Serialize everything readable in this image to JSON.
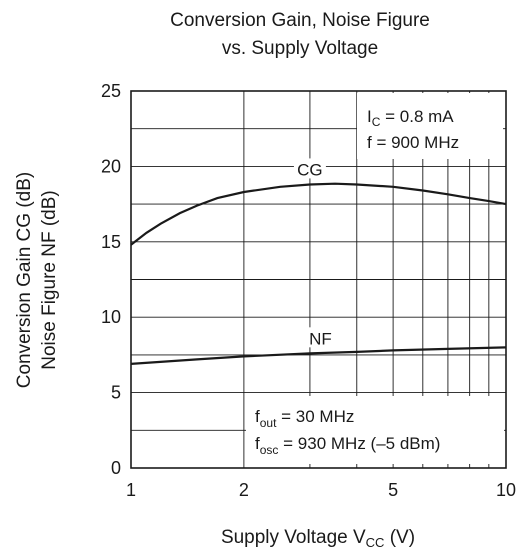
{
  "chart_data": {
    "type": "line",
    "title": [
      "Conversion Gain, Noise Figure",
      "vs. Supply Voltage"
    ],
    "xlabel": {
      "main": "Supply Voltage  V",
      "sub": "CC",
      "unit": "  (V)"
    },
    "ylabel": [
      "Conversion Gain  CG  (dB)",
      "Noise Figure  NF  (dB)"
    ],
    "x_scale": "log",
    "xlim": [
      1,
      10
    ],
    "ylim": [
      0,
      25
    ],
    "x_ticks": [
      1,
      2,
      5,
      10
    ],
    "x_tick_labels": [
      "1",
      "2",
      "5",
      "10"
    ],
    "y_ticks": [
      0,
      5,
      10,
      15,
      20,
      25
    ],
    "y_tick_labels": [
      "0",
      "5",
      "10",
      "15",
      "20",
      "25"
    ],
    "x_grid": [
      1,
      2,
      3,
      4,
      5,
      6,
      7,
      8,
      9,
      10
    ],
    "y_grid": [
      0,
      2.5,
      5,
      7.5,
      10,
      12.5,
      15,
      17.5,
      20,
      22.5,
      25
    ],
    "grid": true,
    "series": [
      {
        "name": "CG",
        "x": [
          1,
          1.1,
          1.2,
          1.35,
          1.5,
          1.7,
          2,
          2.5,
          3,
          3.5,
          4,
          5,
          6,
          7,
          8,
          9,
          10
        ],
        "y": [
          14.8,
          15.6,
          16.2,
          16.9,
          17.4,
          17.9,
          18.3,
          18.65,
          18.8,
          18.85,
          18.8,
          18.65,
          18.4,
          18.15,
          17.9,
          17.7,
          17.5
        ]
      },
      {
        "name": "NF",
        "x": [
          1,
          1.5,
          2,
          3,
          4,
          5,
          7,
          10
        ],
        "y": [
          6.9,
          7.2,
          7.4,
          7.6,
          7.7,
          7.8,
          7.9,
          8.0
        ]
      }
    ],
    "series_labels": [
      {
        "text": "CG",
        "x": 3,
        "y": 19.8
      },
      {
        "text": "NF",
        "x": 3.2,
        "y": 8.6
      }
    ],
    "annotations": {
      "top_right": [
        {
          "main": "I",
          "sub": "C",
          "rest": " = 0.8 mA"
        },
        {
          "main": "f = 900 MHz",
          "sub": "",
          "rest": ""
        }
      ],
      "bottom_right": [
        {
          "main": "f",
          "sub": "out",
          "rest": " = 30 MHz"
        },
        {
          "main": "f",
          "sub": "osc",
          "rest": " = 930 MHz (–5 dBm)"
        }
      ]
    }
  }
}
